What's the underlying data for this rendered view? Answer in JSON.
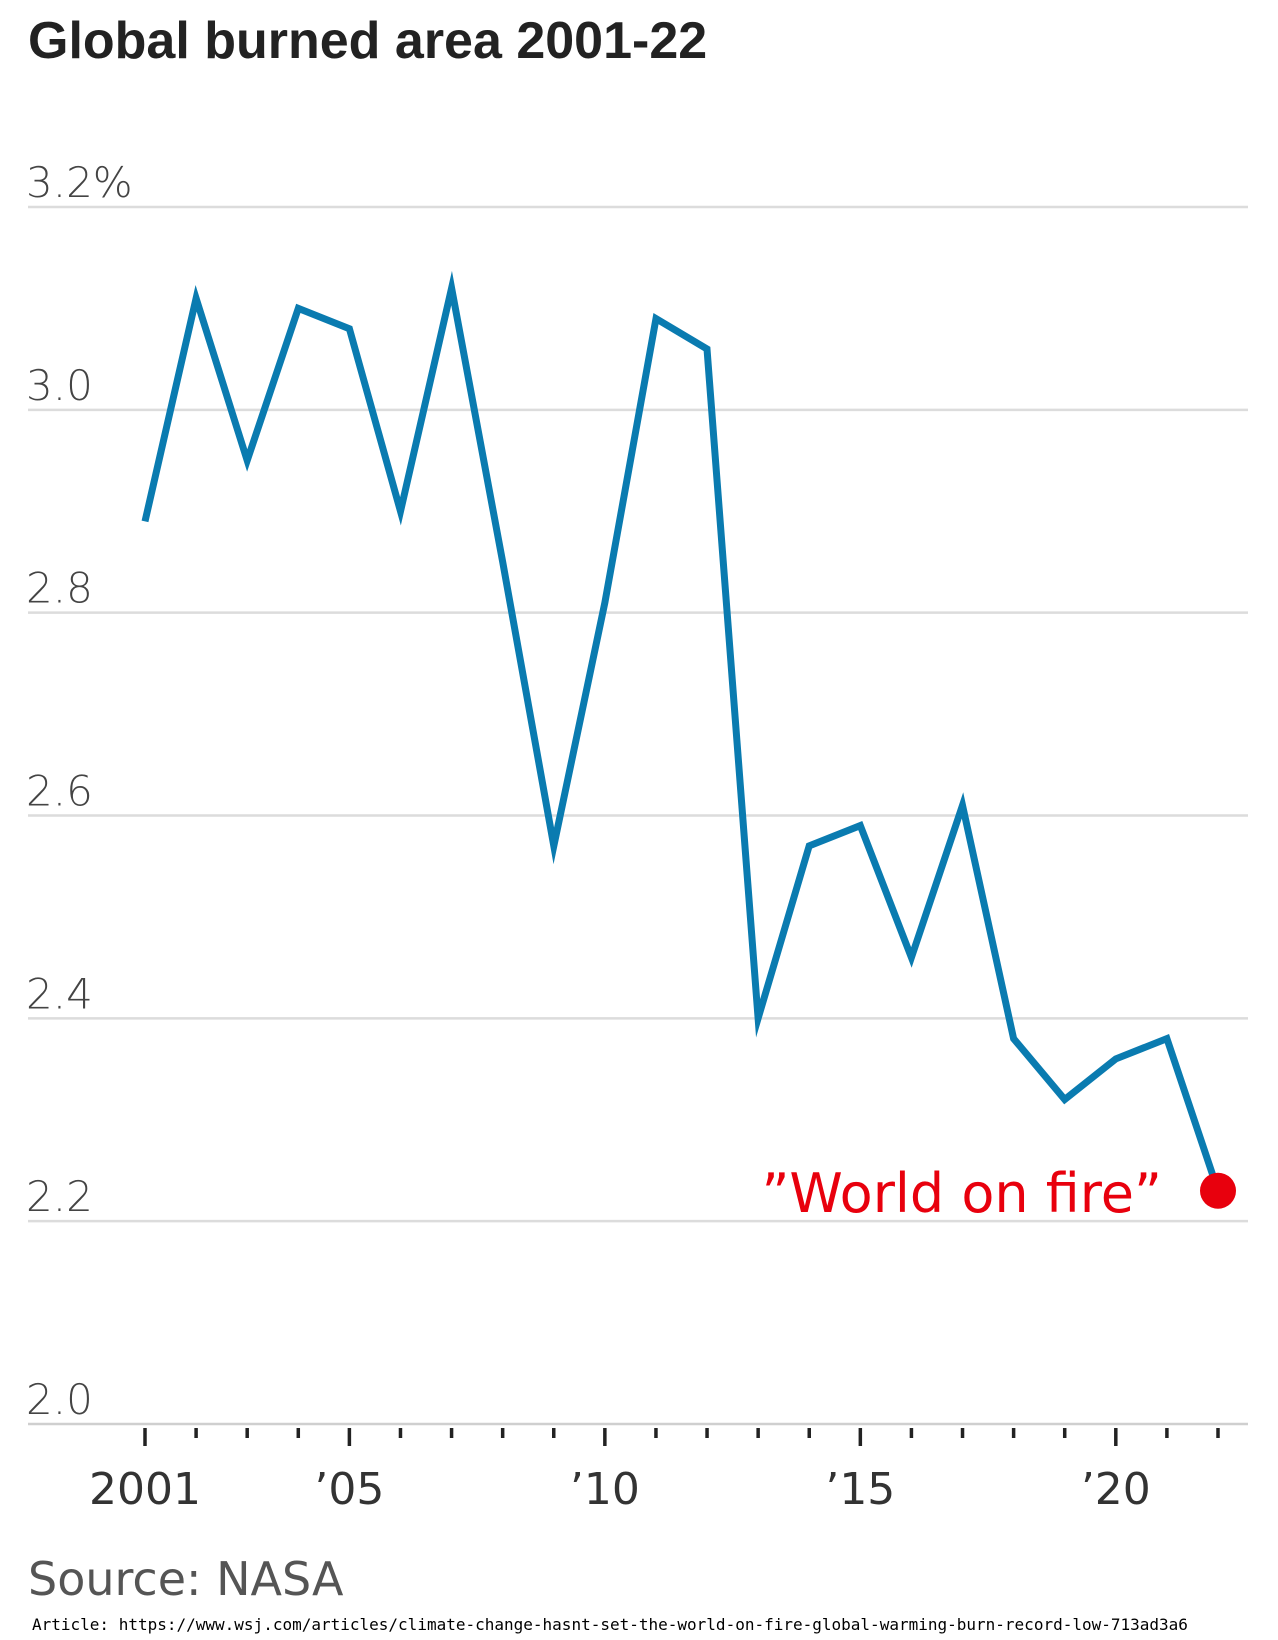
{
  "header": {
    "title": "Global burned area 2001-22"
  },
  "chart_data": {
    "type": "line",
    "title": "Global burned area 2001-22",
    "xlabel": "",
    "ylabel": "",
    "x": [
      2001,
      2002,
      2003,
      2004,
      2005,
      2006,
      2007,
      2008,
      2009,
      2010,
      2011,
      2012,
      2013,
      2014,
      2015,
      2016,
      2017,
      2018,
      2019,
      2020,
      2021,
      2022
    ],
    "series": [
      {
        "values": [
          2.89,
          3.11,
          2.95,
          3.1,
          3.08,
          2.9,
          3.12,
          2.85,
          2.57,
          2.81,
          3.09,
          3.06,
          2.4,
          2.57,
          2.59,
          2.46,
          2.61,
          2.38,
          2.32,
          2.36,
          2.38,
          2.23
        ]
      }
    ],
    "xlim": [
      2001,
      2022
    ],
    "ylim": [
      2.0,
      3.2
    ],
    "yticks": [
      2.0,
      2.2,
      2.4,
      2.6,
      2.8,
      3.0,
      3.2
    ],
    "ytick_labels": [
      "2.0",
      "2.2",
      "2.4",
      "2.6",
      "2.8",
      "3.0",
      "3.2%"
    ],
    "xticks": [
      2001,
      2005,
      2010,
      2015,
      2020
    ],
    "xtick_labels": [
      "2001",
      "’05",
      "’10",
      "’15",
      "’20"
    ],
    "grid": true,
    "line_color": "#0a7bb0",
    "highlight_color": "#e8000d",
    "annotation": {
      "text": "”World on fire”",
      "x": 2022,
      "y": 2.23
    }
  },
  "footer": {
    "source": "Source: NASA",
    "article": "Article: https://www.wsj.com/articles/climate-change-hasnt-set-the-world-on-fire-global-warming-burn-record-low-713ad3a6"
  }
}
